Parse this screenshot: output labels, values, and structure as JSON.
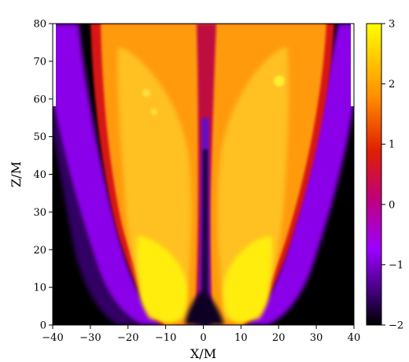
{
  "chart_data": {
    "type": "heatmap",
    "title": "",
    "xlabel": "X/M",
    "ylabel": "Z/M",
    "xlim": [
      -40,
      40
    ],
    "ylim": [
      0,
      80
    ],
    "x_ticks": [
      "−40",
      "−30",
      "−20",
      "−10",
      "0",
      "10",
      "20",
      "30",
      "40"
    ],
    "y_ticks": [
      "0",
      "10",
      "20",
      "30",
      "40",
      "50",
      "60",
      "70",
      "80"
    ],
    "colorbar": {
      "range": [
        -2,
        3
      ],
      "ticks": [
        "3",
        "2",
        "1",
        "0",
        "−1",
        "−2"
      ],
      "colormap": "gnuplot",
      "stops": [
        "#000000",
        "#5a00a8",
        "#9b00ff",
        "#d00050",
        "#ff5000",
        "#ffa000",
        "#ffff00"
      ]
    },
    "features": {
      "domain_top_cutoff_z": 58,
      "jet_lobes": [
        {
          "side": "left",
          "base_x": -9,
          "base_z": 0,
          "top_x": -17,
          "top_z": 80,
          "peak_value": 3
        },
        {
          "side": "right",
          "base_x": 9,
          "base_z": 0,
          "top_x": 17,
          "top_z": 80,
          "peak_value": 3
        }
      ],
      "central_spine_value": -1,
      "outer_sheath_value": -0.8,
      "background_value": -2
    },
    "grid": false
  }
}
